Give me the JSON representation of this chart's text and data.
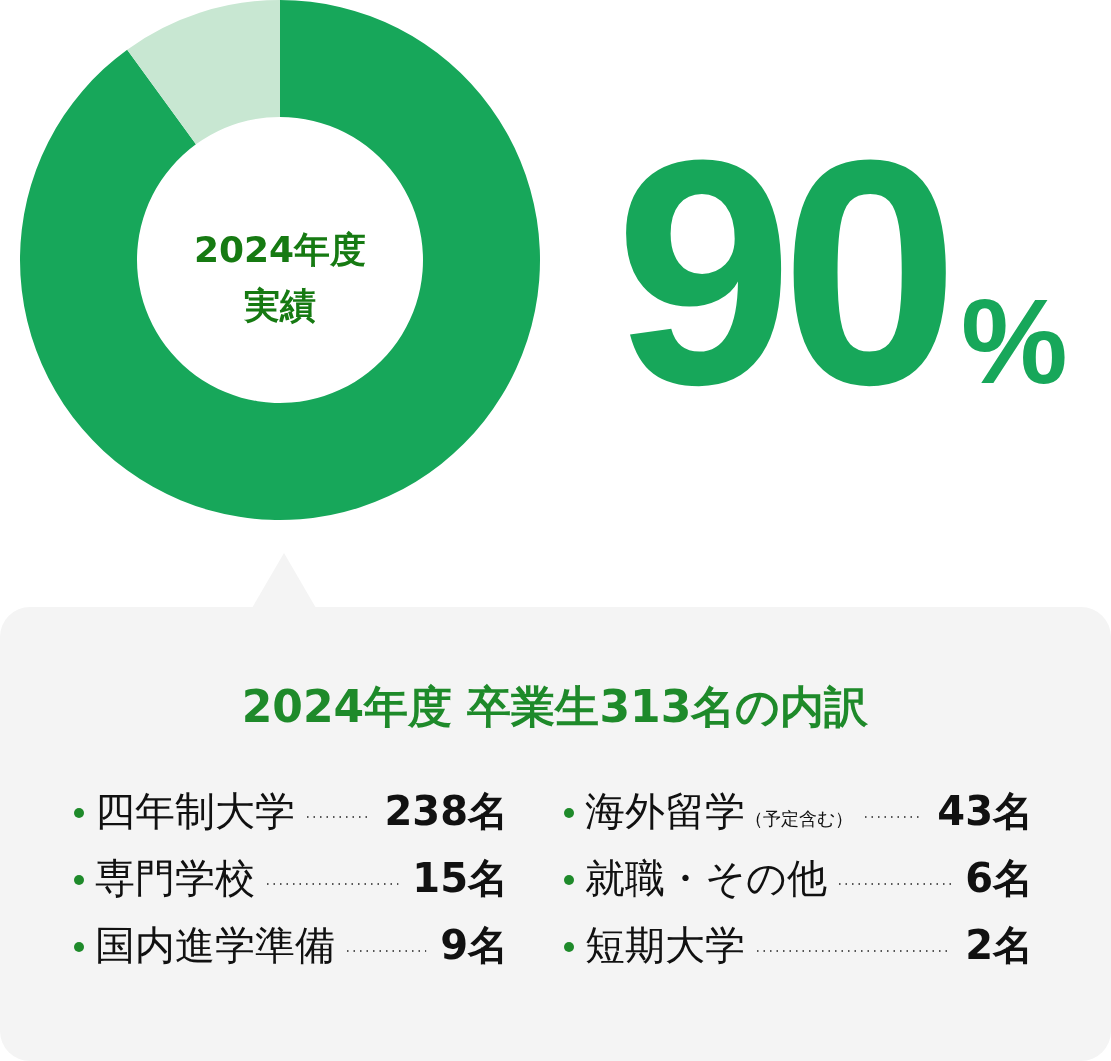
{
  "chart_data": [
    {
      "type": "donut",
      "categories": [
        null,
        null
      ],
      "values": [
        90,
        10
      ],
      "colors": [
        "#17a75a",
        "#c8e7d2"
      ],
      "value_labels": [
        "90%",
        null
      ],
      "annotations": [
        "2024年度",
        "実績"
      ]
    },
    {
      "type": "other",
      "title": "2024年度 卒業生313名の内訳",
      "categories": [
        "四年制大学",
        "専門学校",
        "国内進学準備",
        "海外留学（予定含む）",
        "就職・その他",
        "短期大学"
      ],
      "value_labels": [
        "238名",
        "15名",
        "9名",
        "43名",
        "6名",
        "2名"
      ]
    }
  ]
}
